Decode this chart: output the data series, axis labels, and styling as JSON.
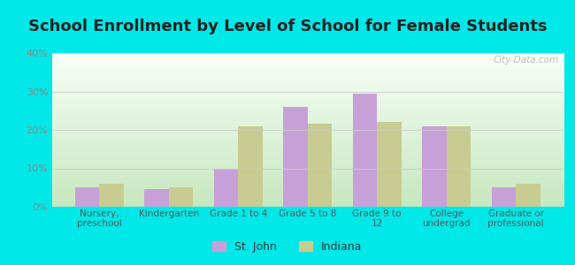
{
  "title": "School Enrollment by Level of School for Female Students",
  "categories": [
    "Nursery,\npreschool",
    "Kindergarten",
    "Grade 1 to 4",
    "Grade 5 to 8",
    "Grade 9 to\n12",
    "College\nundergrad",
    "Graduate or\nprofessional"
  ],
  "st_john": [
    5.0,
    4.5,
    10.0,
    26.0,
    29.5,
    21.0,
    5.0
  ],
  "indiana": [
    6.0,
    5.0,
    21.0,
    21.5,
    22.0,
    21.0,
    6.0
  ],
  "st_john_color": "#c8a0d8",
  "indiana_color": "#c8cc90",
  "background_color": "#00e8e8",
  "ylim": [
    0,
    40
  ],
  "yticks": [
    0,
    10,
    20,
    30,
    40
  ],
  "bar_width": 0.35,
  "legend_labels": [
    "St. John",
    "Indiana"
  ],
  "watermark": "City-Data.com",
  "title_fontsize": 13,
  "grid_color": "#cccccc"
}
